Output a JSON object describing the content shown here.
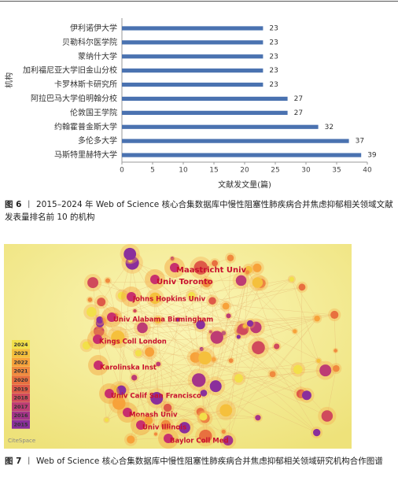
{
  "chart_data": {
    "type": "bar",
    "orientation": "horizontal",
    "categories": [
      "伊利诺伊大学",
      "贝勒科尔医学院",
      "蒙纳什大学",
      "加利福尼亚大学旧金山分校",
      "卡罗林斯卡研究所",
      "阿拉巴马大学伯明翰分校",
      "伦敦国王学院",
      "约翰霍普金斯大学",
      "多伦多大学",
      "马斯特里赫特大学"
    ],
    "values": [
      23,
      23,
      23,
      23,
      23,
      27,
      27,
      32,
      37,
      39
    ],
    "color": "#4a72b0",
    "xlim": [
      0,
      40
    ],
    "xticks": [
      0,
      5,
      10,
      15,
      20,
      25,
      30,
      35,
      40
    ],
    "x_label": "文献发文量(篇)",
    "y_label": "机构"
  },
  "figure6_caption": {
    "label": "图 6",
    "separator": "丨",
    "text": "2015–2024 年 Web of Science 核心合集数据库中慢性阻塞性肺疾病合并焦虑抑郁相关领域文献发表量排名前 10 的机构"
  },
  "figure7": {
    "nodes": [
      "Maastricht Univ",
      "Univ Toronto",
      "Johns Hopkins Univ",
      "Univ Alabama Birmingham",
      "Kings Coll London",
      "Karolinska Inst",
      "Univ Calif San Francisco",
      "Monash Univ",
      "Univ Illinois",
      "Baylor Coll Med"
    ],
    "legend": [
      {
        "year": 2024,
        "color": "#f2e04a"
      },
      {
        "year": 2023,
        "color": "#f5c03c"
      },
      {
        "year": 2022,
        "color": "#f7a23a"
      },
      {
        "year": 2021,
        "color": "#f08a3e"
      },
      {
        "year": 2020,
        "color": "#e8703f"
      },
      {
        "year": 2019,
        "color": "#de5a48"
      },
      {
        "year": 2018,
        "color": "#d04a5c"
      },
      {
        "year": 2017,
        "color": "#bd3c74"
      },
      {
        "year": 2016,
        "color": "#a5348a"
      },
      {
        "year": 2015,
        "color": "#8a2f9c"
      }
    ],
    "watermark": "CiteSpace"
  },
  "figure7_caption": {
    "label": "图 7",
    "separator": "丨",
    "text": "Web of Science 核心合集数据库中慢性阻塞性肺疾病合并焦虑抑郁相关领域研究机构合作图谱"
  }
}
